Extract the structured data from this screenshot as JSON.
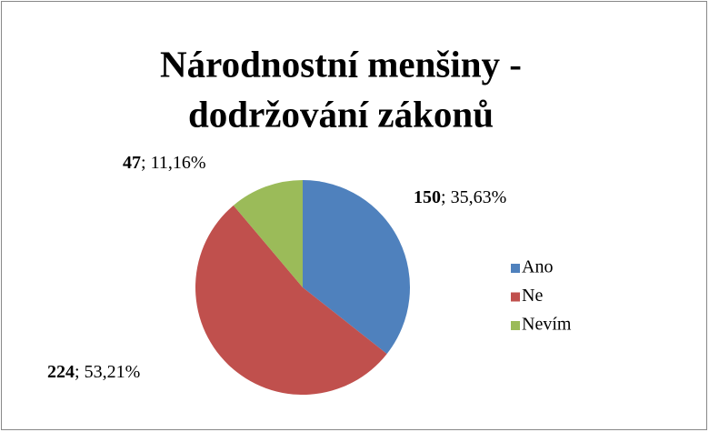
{
  "chart_data": {
    "type": "pie",
    "title": [
      "Národnostní menšiny -",
      "dodržování zákonů"
    ],
    "categories": [
      "Ano",
      "Ne",
      "Nevím"
    ],
    "values": [
      150,
      224,
      47
    ],
    "percent_labels": [
      "35,63%",
      "53,21%",
      "11,16%"
    ],
    "label_separator": "; ",
    "colors": [
      "#4f81bd",
      "#c0504d",
      "#9bbb59"
    ],
    "legend": "right"
  }
}
